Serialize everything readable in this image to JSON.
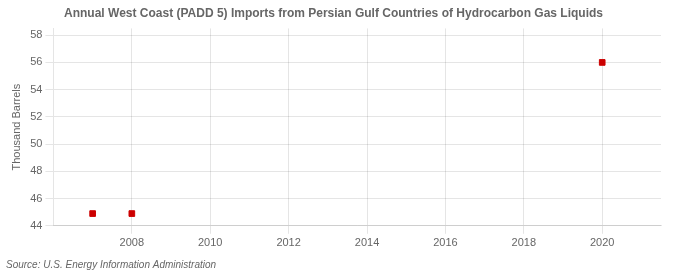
{
  "chart_data": {
    "type": "scatter",
    "title": "Annual West Coast (PADD 5) Imports from Persian Gulf Countries of Hydrocarbon Gas Liquids",
    "ylabel": "Thousand Barrels",
    "annotation": "Source: U.S. Energy Information Administration",
    "x": [
      2007,
      2008,
      2020
    ],
    "values": [
      44.9,
      44.9,
      56.0
    ],
    "color": "#cc0000",
    "marker": "square",
    "xlim": [
      2006.0,
      2021.5
    ],
    "xticks": [
      2008,
      2010,
      2012,
      2014,
      2016,
      2018,
      2020
    ],
    "ylim": [
      44,
      58.5
    ],
    "yticks": [
      44,
      46,
      48,
      50,
      52,
      54,
      56,
      58
    ],
    "grid": true
  }
}
